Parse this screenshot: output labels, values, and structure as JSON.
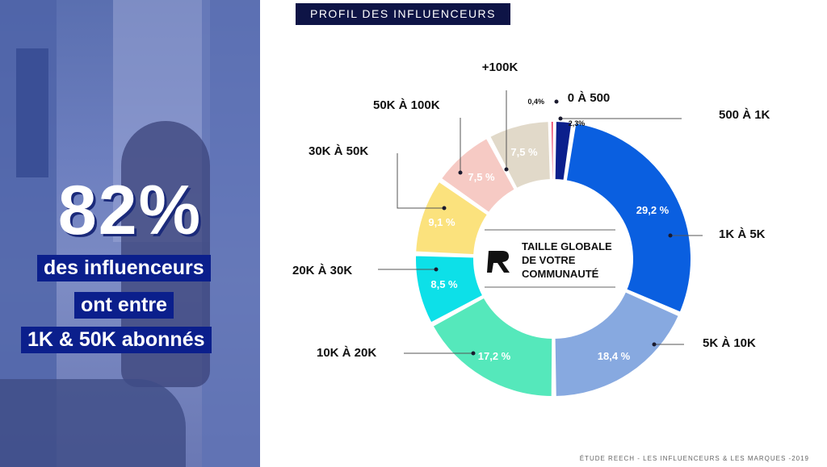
{
  "header": {
    "title": "PROFIL DES INFLUENCEURS"
  },
  "stat": {
    "value": "82%",
    "line1": "des influenceurs",
    "line2": "ont entre",
    "line3": "1K & 50K abonnés"
  },
  "center": {
    "line1": "TAILLE GLOBALE",
    "line2": "DE VOTRE",
    "line3": "COMMUNAUTÉ"
  },
  "footer": "ÉTUDE REECH - LES INFLUENCEURS & LES MARQUES -2019",
  "chart_data": {
    "type": "pie",
    "donut": true,
    "slices": [
      {
        "label": "0 À 500",
        "value": 0.4,
        "value_label": "0,4%",
        "color": "#e8305a"
      },
      {
        "label": "500 À 1K",
        "value": 2.3,
        "value_label": "2,3%",
        "color": "#0b1f8c"
      },
      {
        "label": "1K À 5K",
        "value": 29.2,
        "value_label": "29,2 %",
        "color": "#0a5fe0"
      },
      {
        "label": "5K À 10K",
        "value": 18.4,
        "value_label": "18,4 %",
        "color": "#87a9e0"
      },
      {
        "label": "10K À 20K",
        "value": 17.2,
        "value_label": "17,2 %",
        "color": "#55e8bb"
      },
      {
        "label": "20K À 30K",
        "value": 8.5,
        "value_label": "8,5 %",
        "color": "#0de0e8"
      },
      {
        "label": "30K À 50K",
        "value": 9.1,
        "value_label": "9,1 %",
        "color": "#fbe27d"
      },
      {
        "label": "50K À 100K",
        "value": 7.5,
        "value_label": "7,5 %",
        "color": "#f6cac4"
      },
      {
        "label": "+100K",
        "value": 7.5,
        "value_label": "7,5 %",
        "color": "#e1d9c9"
      }
    ]
  }
}
